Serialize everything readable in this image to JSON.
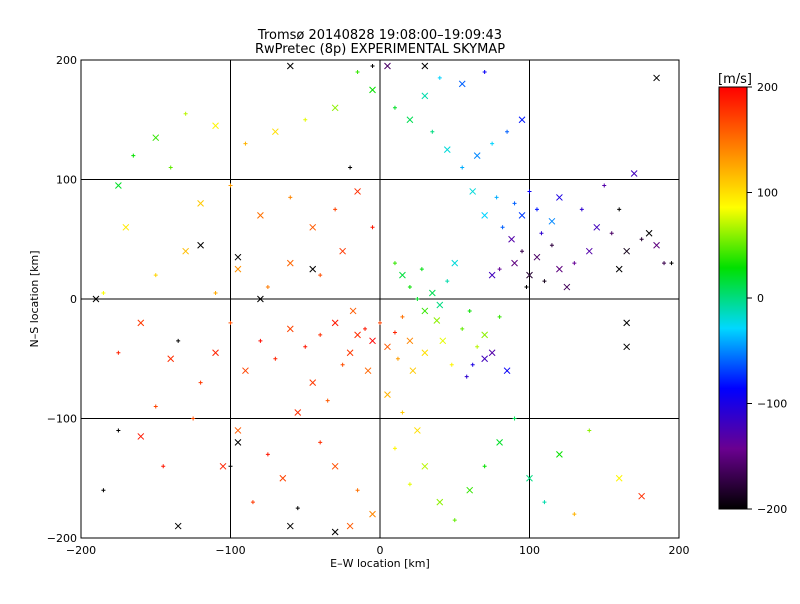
{
  "chart_data": {
    "type": "scatter",
    "title": "Tromsø 20140828 19:08:00–19:09:43",
    "subtitle": "RwPretec (8p) EXPERIMENTAL SKYMAP",
    "xlabel": "E–W location [km]",
    "ylabel": "N–S location [km]",
    "xlim": [
      -200,
      200
    ],
    "ylim": [
      -200,
      200
    ],
    "xticks": [
      -200,
      -100,
      0,
      100,
      200
    ],
    "yticks": [
      -200,
      -100,
      0,
      100,
      200
    ],
    "grid": true,
    "markers": [
      "+",
      "x"
    ],
    "colorbar": {
      "label": "[m/s]",
      "range": [
        -200,
        200
      ],
      "ticks": [
        200,
        100,
        0,
        -100,
        -200
      ],
      "colormap": "rainbow",
      "stops": [
        "#000000",
        "#6a0090",
        "#0000ff",
        "#00d8ff",
        "#00e000",
        "#ffff00",
        "#ff8000",
        "#ff0000"
      ]
    },
    "points": [
      [
        -15,
        -30,
        180,
        "x"
      ],
      [
        -10,
        -25,
        190,
        "+"
      ],
      [
        -5,
        -35,
        200,
        "x"
      ],
      [
        0,
        -20,
        170,
        "+"
      ],
      [
        5,
        -40,
        160,
        "x"
      ],
      [
        10,
        -28,
        185,
        "+"
      ],
      [
        -20,
        -45,
        175,
        "x"
      ],
      [
        15,
        -15,
        150,
        "+"
      ],
      [
        -30,
        -20,
        190,
        "x"
      ],
      [
        -25,
        -55,
        165,
        "+"
      ],
      [
        20,
        -35,
        140,
        "x"
      ],
      [
        -40,
        -30,
        180,
        "+"
      ],
      [
        -8,
        -60,
        155,
        "x"
      ],
      [
        12,
        -50,
        130,
        "+"
      ],
      [
        -18,
        -10,
        160,
        "x"
      ],
      [
        -50,
        -40,
        190,
        "+"
      ],
      [
        -60,
        -25,
        170,
        "x"
      ],
      [
        -70,
        -50,
        185,
        "+"
      ],
      [
        -45,
        -70,
        175,
        "x"
      ],
      [
        -35,
        -85,
        160,
        "+"
      ],
      [
        -55,
        -95,
        180,
        "x"
      ],
      [
        -80,
        -35,
        195,
        "+"
      ],
      [
        -90,
        -60,
        170,
        "x"
      ],
      [
        -100,
        -20,
        165,
        "+"
      ],
      [
        -110,
        -45,
        185,
        "x"
      ],
      [
        -120,
        -70,
        175,
        "+"
      ],
      [
        -95,
        -110,
        160,
        "x"
      ],
      [
        -75,
        -130,
        190,
        "+"
      ],
      [
        -65,
        -150,
        170,
        "x"
      ],
      [
        -40,
        -120,
        180,
        "+"
      ],
      [
        -30,
        -140,
        165,
        "x"
      ],
      [
        -15,
        -160,
        150,
        "+"
      ],
      [
        -5,
        -180,
        140,
        "x"
      ],
      [
        -85,
        -170,
        175,
        "+"
      ],
      [
        -105,
        -140,
        185,
        "x"
      ],
      [
        -125,
        -100,
        165,
        "+"
      ],
      [
        -140,
        -50,
        180,
        "x"
      ],
      [
        -150,
        -90,
        170,
        "+"
      ],
      [
        -160,
        -115,
        190,
        "x"
      ],
      [
        -175,
        -45,
        185,
        "+"
      ],
      [
        30,
        -10,
        40,
        "x"
      ],
      [
        25,
        0,
        20,
        "+"
      ],
      [
        35,
        5,
        10,
        "x"
      ],
      [
        20,
        10,
        30,
        "+"
      ],
      [
        40,
        -5,
        0,
        "x"
      ],
      [
        45,
        15,
        -10,
        "+"
      ],
      [
        15,
        20,
        15,
        "x"
      ],
      [
        28,
        25,
        25,
        "+"
      ],
      [
        50,
        30,
        -20,
        "x"
      ],
      [
        10,
        30,
        40,
        "+"
      ],
      [
        38,
        -18,
        60,
        "x"
      ],
      [
        55,
        -25,
        50,
        "+"
      ],
      [
        42,
        -35,
        80,
        "x"
      ],
      [
        60,
        -10,
        30,
        "+"
      ],
      [
        30,
        -45,
        100,
        "x"
      ],
      [
        65,
        -40,
        70,
        "+"
      ],
      [
        22,
        -60,
        110,
        "x"
      ],
      [
        48,
        -55,
        90,
        "+"
      ],
      [
        70,
        -30,
        60,
        "x"
      ],
      [
        80,
        -15,
        40,
        "+"
      ],
      [
        70,
        -50,
        -120,
        "x"
      ],
      [
        62,
        -55,
        -100,
        "+"
      ],
      [
        75,
        -45,
        -130,
        "x"
      ],
      [
        58,
        -65,
        -110,
        "+"
      ],
      [
        85,
        -60,
        -90,
        "x"
      ],
      [
        90,
        30,
        -150,
        "x"
      ],
      [
        95,
        40,
        -170,
        "+"
      ],
      [
        100,
        20,
        -180,
        "x"
      ],
      [
        80,
        25,
        -140,
        "+"
      ],
      [
        105,
        35,
        -160,
        "x"
      ],
      [
        110,
        15,
        -190,
        "+"
      ],
      [
        88,
        50,
        -130,
        "x"
      ],
      [
        115,
        45,
        -175,
        "+"
      ],
      [
        120,
        25,
        -150,
        "x"
      ],
      [
        98,
        10,
        -200,
        "+"
      ],
      [
        75,
        20,
        -120,
        "x"
      ],
      [
        130,
        30,
        -140,
        "+"
      ],
      [
        125,
        10,
        -165,
        "x"
      ],
      [
        108,
        55,
        -110,
        "+"
      ],
      [
        140,
        40,
        -130,
        "x"
      ],
      [
        82,
        60,
        -60,
        "+"
      ],
      [
        95,
        70,
        -70,
        "x"
      ],
      [
        105,
        75,
        -80,
        "+"
      ],
      [
        115,
        65,
        -50,
        "x"
      ],
      [
        90,
        80,
        -60,
        "+"
      ],
      [
        70,
        70,
        -30,
        "x"
      ],
      [
        78,
        85,
        -40,
        "+"
      ],
      [
        62,
        90,
        -20,
        "x"
      ],
      [
        100,
        90,
        -90,
        "+"
      ],
      [
        120,
        85,
        -100,
        "x"
      ],
      [
        135,
        75,
        -110,
        "+"
      ],
      [
        145,
        60,
        -120,
        "x"
      ],
      [
        155,
        55,
        -160,
        "+"
      ],
      [
        165,
        40,
        -190,
        "x"
      ],
      [
        175,
        50,
        -180,
        "+"
      ],
      [
        185,
        45,
        -150,
        "x"
      ],
      [
        190,
        30,
        -170,
        "+"
      ],
      [
        160,
        25,
        -200,
        "x"
      ],
      [
        150,
        95,
        -130,
        "+"
      ],
      [
        170,
        105,
        -120,
        "x"
      ],
      [
        55,
        110,
        -40,
        "+"
      ],
      [
        65,
        120,
        -50,
        "x"
      ],
      [
        75,
        130,
        -30,
        "+"
      ],
      [
        45,
        125,
        -20,
        "x"
      ],
      [
        85,
        140,
        -60,
        "+"
      ],
      [
        95,
        150,
        -80,
        "x"
      ],
      [
        35,
        140,
        0,
        "+"
      ],
      [
        20,
        150,
        10,
        "x"
      ],
      [
        10,
        160,
        20,
        "+"
      ],
      [
        30,
        170,
        -10,
        "x"
      ],
      [
        40,
        185,
        -30,
        "+"
      ],
      [
        55,
        180,
        -60,
        "x"
      ],
      [
        70,
        190,
        -90,
        "+"
      ],
      [
        -5,
        175,
        30,
        "x"
      ],
      [
        -15,
        190,
        40,
        "+"
      ],
      [
        -30,
        160,
        60,
        "x"
      ],
      [
        -50,
        150,
        80,
        "+"
      ],
      [
        -70,
        140,
        100,
        "x"
      ],
      [
        -90,
        130,
        120,
        "+"
      ],
      [
        -110,
        145,
        90,
        "x"
      ],
      [
        -130,
        155,
        70,
        "+"
      ],
      [
        -150,
        135,
        40,
        "x"
      ],
      [
        -165,
        120,
        30,
        "+"
      ],
      [
        -175,
        95,
        20,
        "x"
      ],
      [
        -140,
        110,
        50,
        "+"
      ],
      [
        -120,
        80,
        110,
        "x"
      ],
      [
        -100,
        95,
        130,
        "+"
      ],
      [
        -80,
        70,
        150,
        "x"
      ],
      [
        -60,
        85,
        140,
        "+"
      ],
      [
        -45,
        60,
        160,
        "x"
      ],
      [
        -30,
        75,
        170,
        "+"
      ],
      [
        -15,
        90,
        180,
        "x"
      ],
      [
        -5,
        60,
        190,
        "+"
      ],
      [
        -25,
        40,
        175,
        "x"
      ],
      [
        -40,
        20,
        165,
        "+"
      ],
      [
        -60,
        30,
        155,
        "x"
      ],
      [
        -75,
        10,
        145,
        "+"
      ],
      [
        -95,
        25,
        135,
        "x"
      ],
      [
        -110,
        5,
        125,
        "+"
      ],
      [
        -130,
        40,
        115,
        "x"
      ],
      [
        -150,
        20,
        105,
        "+"
      ],
      [
        -170,
        60,
        95,
        "x"
      ],
      [
        -185,
        5,
        85,
        "+"
      ],
      [
        -160,
        -20,
        175,
        "x"
      ],
      [
        -145,
        -140,
        190,
        "+"
      ],
      [
        5,
        -80,
        120,
        "x"
      ],
      [
        15,
        -95,
        110,
        "+"
      ],
      [
        25,
        -110,
        100,
        "x"
      ],
      [
        10,
        -125,
        90,
        "+"
      ],
      [
        30,
        -140,
        70,
        "x"
      ],
      [
        20,
        -155,
        80,
        "+"
      ],
      [
        40,
        -170,
        60,
        "x"
      ],
      [
        50,
        -185,
        50,
        "+"
      ],
      [
        60,
        -160,
        40,
        "x"
      ],
      [
        70,
        -140,
        30,
        "+"
      ],
      [
        80,
        -120,
        20,
        "x"
      ],
      [
        90,
        -100,
        10,
        "+"
      ],
      [
        100,
        -150,
        0,
        "x"
      ],
      [
        110,
        -170,
        -10,
        "+"
      ],
      [
        120,
        -130,
        30,
        "x"
      ],
      [
        140,
        -110,
        60,
        "+"
      ],
      [
        160,
        -150,
        90,
        "x"
      ],
      [
        175,
        -165,
        180,
        "x"
      ],
      [
        130,
        -180,
        120,
        "+"
      ],
      [
        -20,
        -190,
        160,
        "x"
      ],
      [
        -60,
        -190,
        -200,
        "x"
      ],
      [
        -55,
        -175,
        -200,
        "+"
      ],
      [
        -95,
        -120,
        -200,
        "x"
      ],
      [
        -185,
        -160,
        -200,
        "+"
      ],
      [
        -135,
        -190,
        -200,
        "x"
      ],
      [
        -175,
        -110,
        -200,
        "+"
      ],
      [
        -30,
        -195,
        -200,
        "x"
      ],
      [
        -5,
        195,
        -200,
        "+"
      ],
      [
        30,
        195,
        -200,
        "x"
      ],
      [
        -60,
        195,
        -200,
        "x"
      ],
      [
        165,
        -20,
        -200,
        "x"
      ],
      [
        165,
        -40,
        -200,
        "x"
      ],
      [
        160,
        75,
        -200,
        "+"
      ],
      [
        180,
        55,
        -200,
        "x"
      ],
      [
        185,
        185,
        -200,
        "x"
      ],
      [
        195,
        30,
        -200,
        "+"
      ],
      [
        -95,
        35,
        -200,
        "x"
      ],
      [
        -120,
        45,
        -200,
        "x"
      ],
      [
        -190,
        0,
        -200,
        "x"
      ],
      [
        -135,
        -35,
        -200,
        "+"
      ],
      [
        -80,
        0,
        -200,
        "x"
      ],
      [
        -100,
        -140,
        -200,
        "+"
      ],
      [
        -45,
        25,
        -200,
        "x"
      ],
      [
        -20,
        110,
        -200,
        "+"
      ],
      [
        5,
        195,
        -160,
        "x"
      ]
    ]
  }
}
